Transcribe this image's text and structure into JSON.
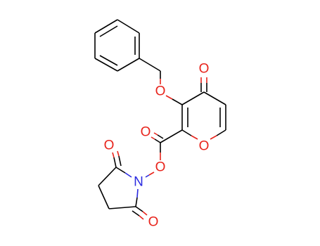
{
  "atoms": [
    {
      "label": "O"
    },
    {
      "label": "O"
    },
    {
      "label": "O"
    },
    {
      "label": "O"
    },
    {
      "label": "O"
    },
    {
      "label": "N"
    },
    {
      "label": "O"
    },
    {
      "label": "O"
    }
  ]
}
